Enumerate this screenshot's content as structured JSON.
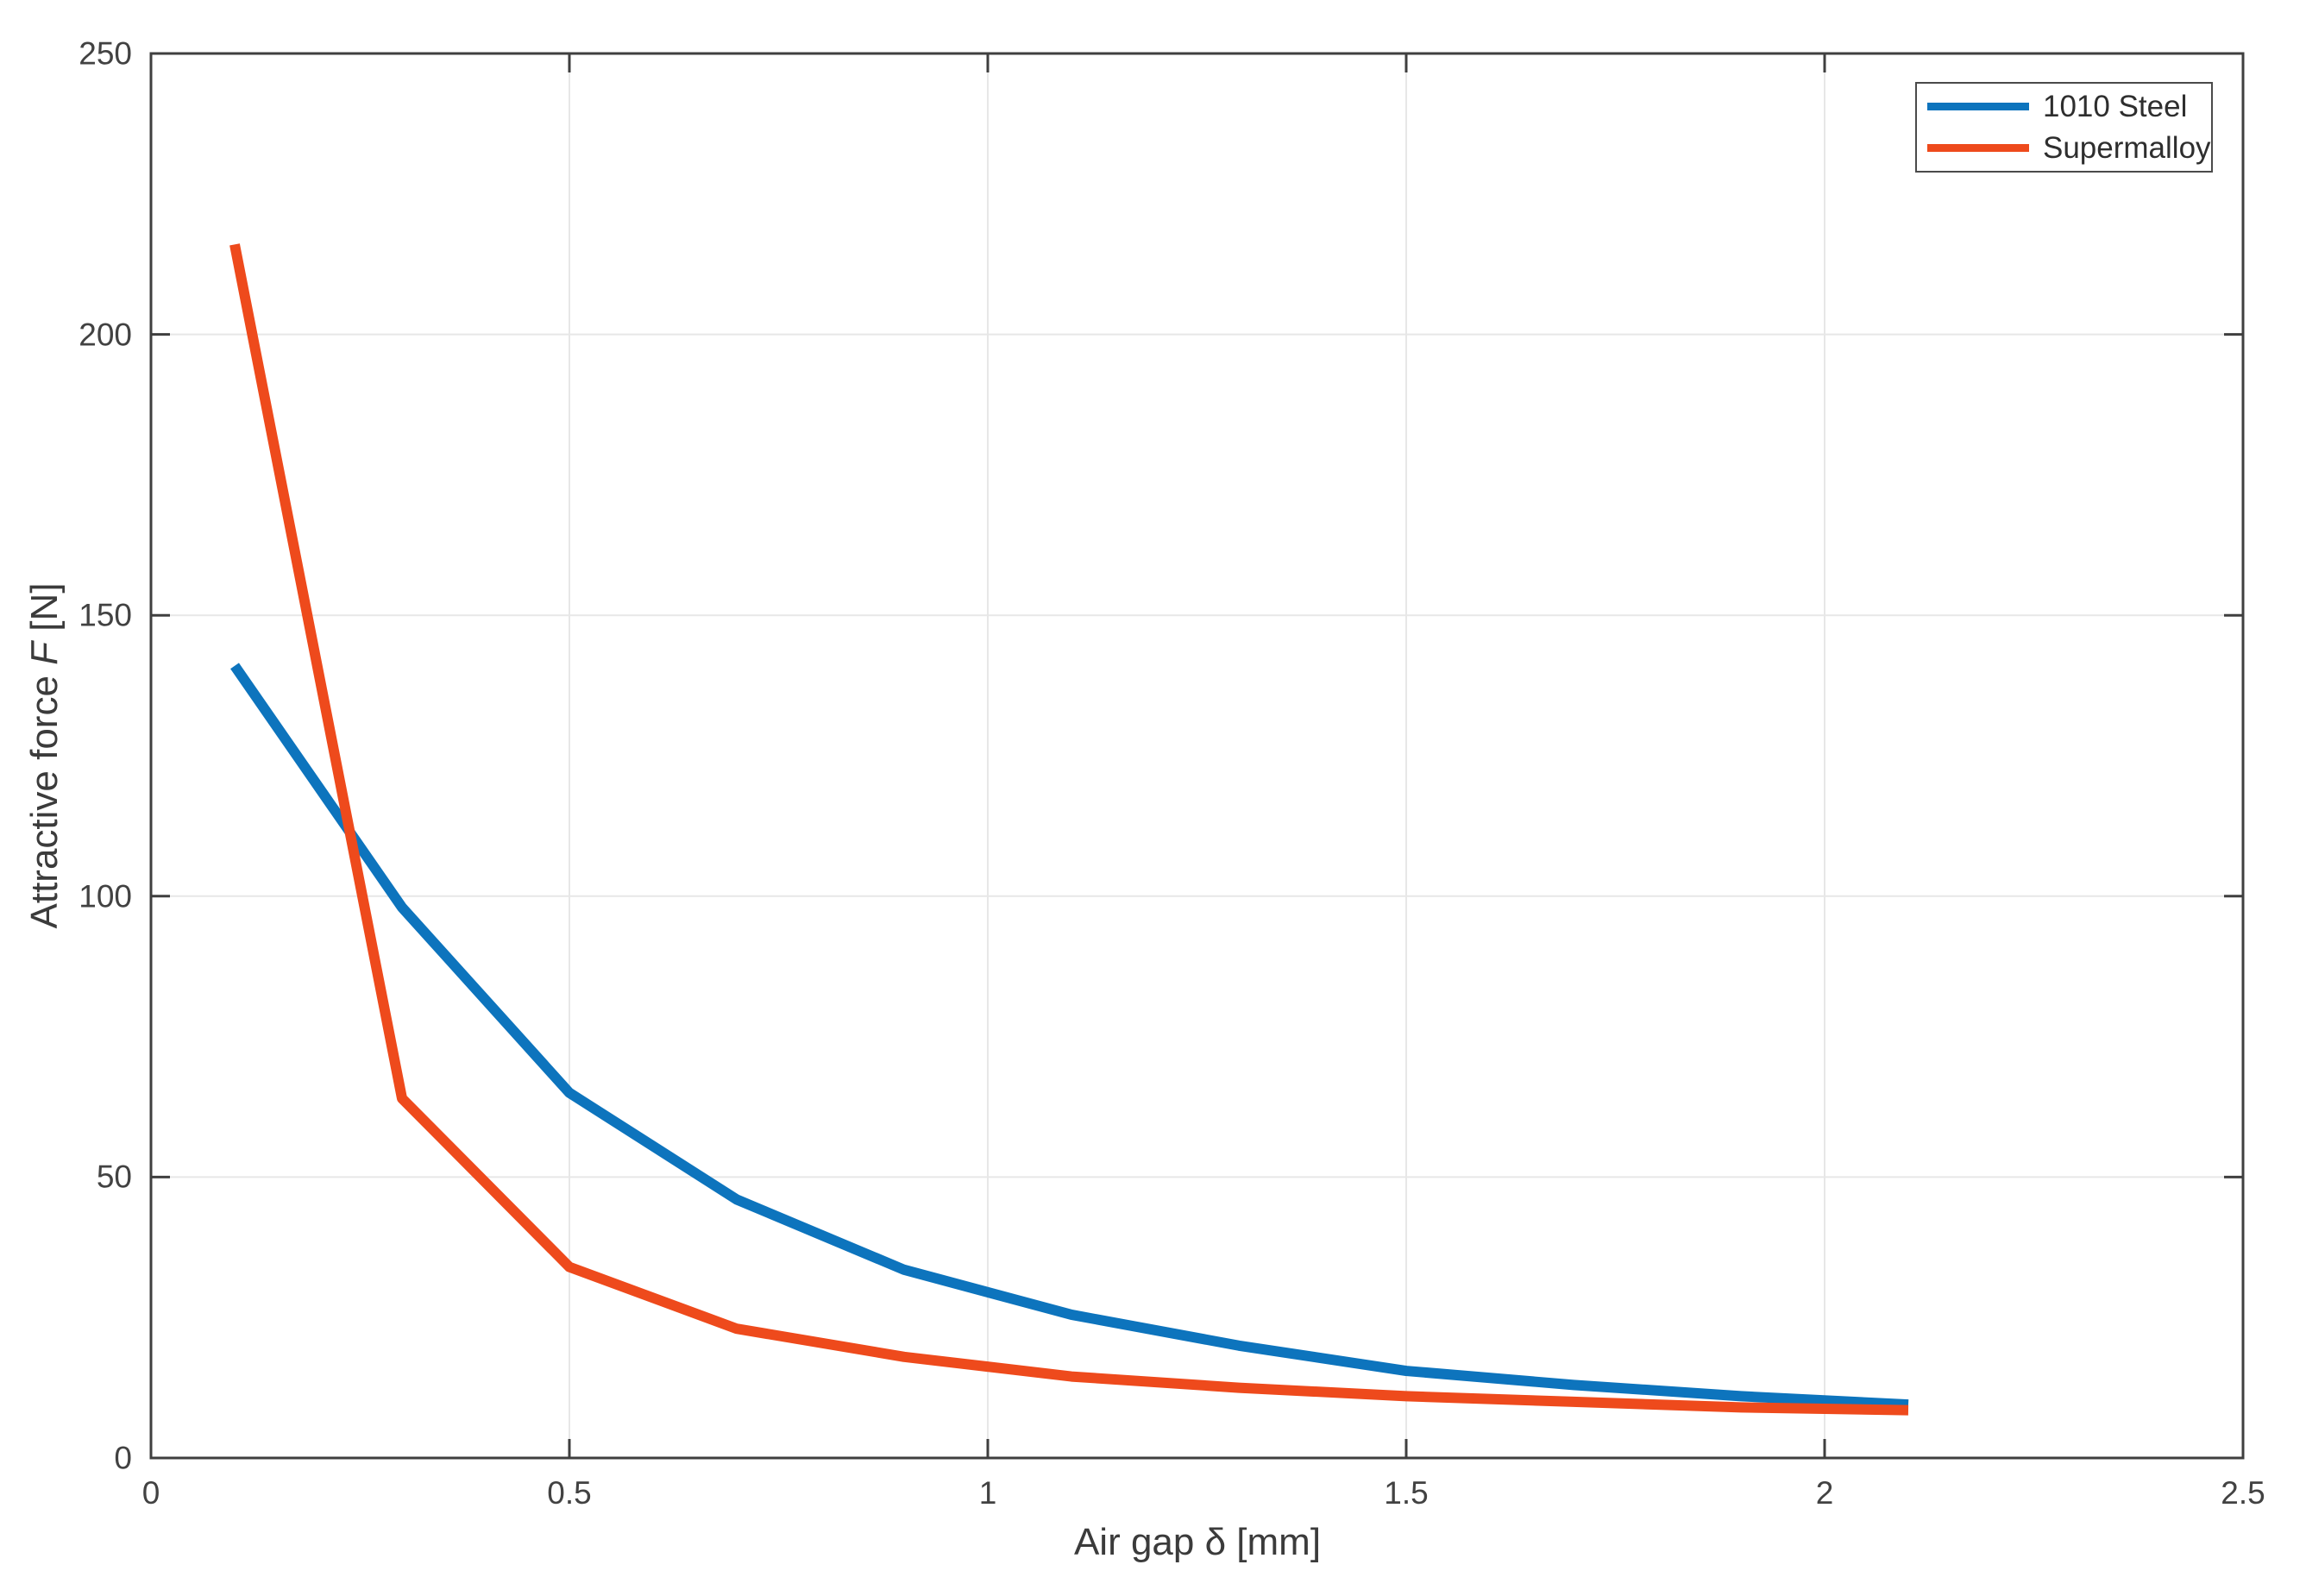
{
  "chart_data": {
    "type": "line",
    "x": [
      0.1,
      0.3,
      0.5,
      0.7,
      0.9,
      1.1,
      1.3,
      1.5,
      1.7,
      1.9,
      2.1
    ],
    "series": [
      {
        "name": "1010 Steel",
        "color": "#0d74bd",
        "values": [
          141,
          98,
          65,
          46,
          33.5,
          25.5,
          20,
          15.5,
          13,
          11,
          9.5
        ]
      },
      {
        "name": "Supermalloy",
        "color": "#ee4a1c",
        "values": [
          216,
          64,
          34,
          23,
          18,
          14.5,
          12.5,
          11,
          10,
          9,
          8.5
        ]
      }
    ],
    "xlabel": "Air gap δ [mm]",
    "ylabel": "Attractive force F [N]",
    "ylabel_parts": {
      "before": "Attractive force ",
      "italic": "F",
      "after": " [N]"
    },
    "xlim": [
      0,
      2.5
    ],
    "ylim": [
      0,
      250
    ],
    "x_ticks": {
      "values": [
        0,
        0.5,
        1,
        1.5,
        2,
        2.5
      ],
      "labels": [
        "0",
        "0.5",
        "1",
        "1.5",
        "2",
        "2.5"
      ]
    },
    "y_ticks": {
      "values": [
        0,
        50,
        100,
        150,
        200,
        250
      ],
      "labels": [
        "0",
        "50",
        "100",
        "150",
        "200",
        "250"
      ]
    },
    "grid": true,
    "legend_position": "top-right",
    "line_width": 12
  },
  "colors": {
    "background": "#ffffff",
    "grid": "#e7e7e7",
    "axis": "#3f3f3f",
    "tick_text": "#424242"
  }
}
